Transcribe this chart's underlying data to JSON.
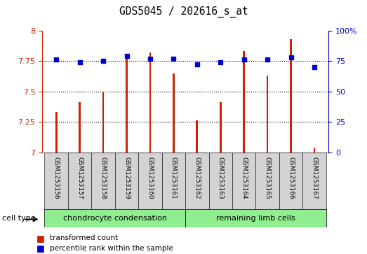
{
  "title": "GDS5045 / 202616_s_at",
  "samples": [
    "GSM1253156",
    "GSM1253157",
    "GSM1253158",
    "GSM1253159",
    "GSM1253160",
    "GSM1253161",
    "GSM1253162",
    "GSM1253163",
    "GSM1253164",
    "GSM1253165",
    "GSM1253166",
    "GSM1253167"
  ],
  "transformed_count": [
    7.33,
    7.41,
    7.5,
    7.78,
    7.82,
    7.65,
    7.26,
    7.41,
    7.83,
    7.63,
    7.93,
    7.04
  ],
  "percentile_rank": [
    76,
    74,
    75,
    79,
    77,
    77,
    72,
    74,
    76,
    76,
    78,
    70
  ],
  "group1_label": "chondrocyte condensation",
  "group2_label": "remaining limb cells",
  "ylim_left": [
    7.0,
    8.0
  ],
  "ylim_right": [
    0,
    100
  ],
  "yticks_left": [
    7.0,
    7.25,
    7.5,
    7.75,
    8.0
  ],
  "ytick_labels_left": [
    "7",
    "7.25",
    "7.5",
    "7.75",
    "8"
  ],
  "yticks_right": [
    0,
    25,
    50,
    75,
    100
  ],
  "ytick_labels_right": [
    "0",
    "25",
    "50",
    "75",
    "100%"
  ],
  "bar_color": "#cc2200",
  "dot_color": "#0000cc",
  "cell_type_label": "cell type",
  "group_color": "#90ee90",
  "sample_bg_color": "#d3d3d3",
  "legend_bar_label": "transformed count",
  "legend_dot_label": "percentile rank within the sample",
  "bar_width": 0.08,
  "dot_size": 5
}
